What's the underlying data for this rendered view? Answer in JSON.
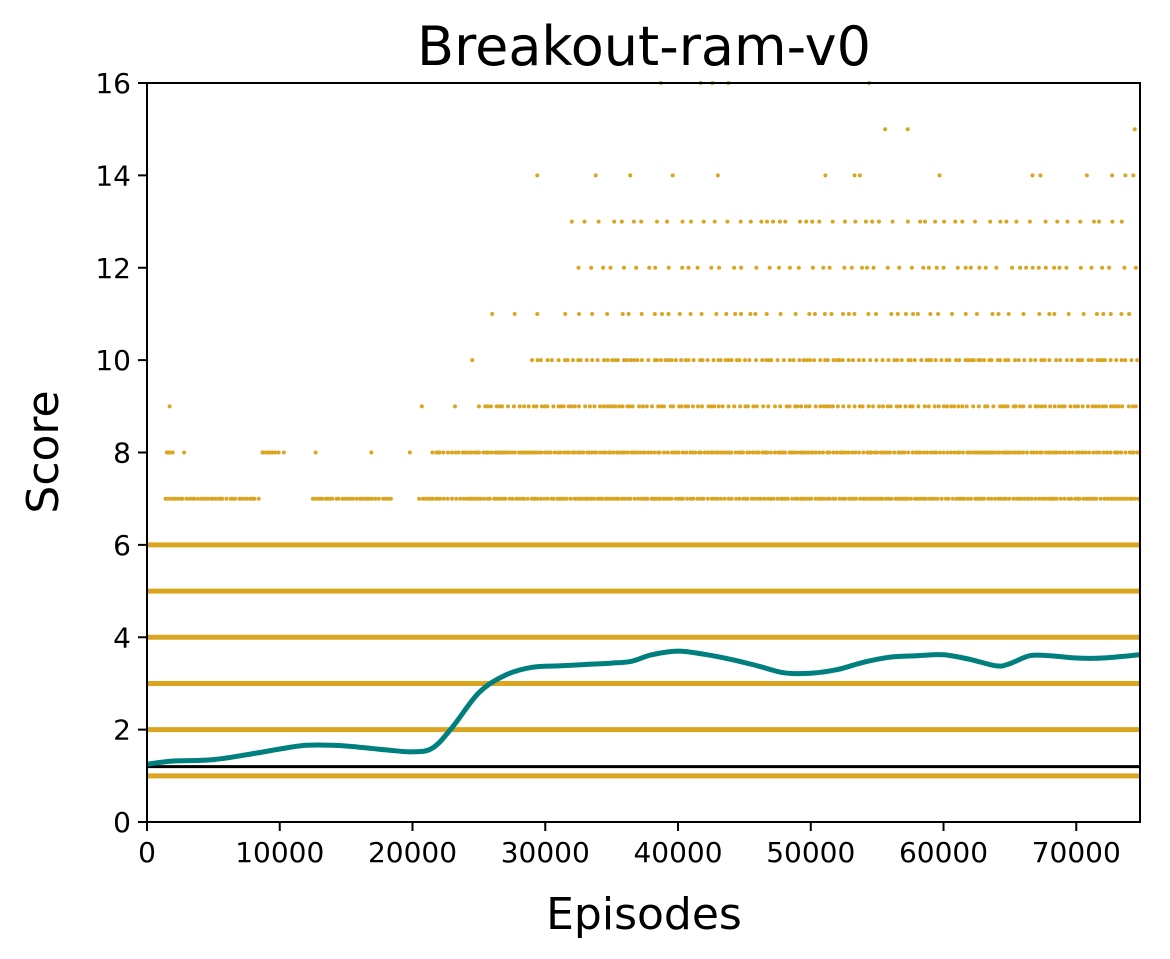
{
  "chart_data": {
    "type": "scatter",
    "title": "Breakout-ram-v0",
    "xlabel": "Episodes",
    "ylabel": "Score",
    "xlim": [
      0,
      74800
    ],
    "ylim": [
      0,
      16
    ],
    "xticks": [
      0,
      10000,
      20000,
      30000,
      40000,
      50000,
      60000,
      70000
    ],
    "yticks": [
      0,
      2,
      4,
      6,
      8,
      10,
      12,
      14,
      16
    ],
    "grid": false,
    "legend": "none",
    "colors": {
      "scatter": "#DAA520",
      "moving_average": "#007F7F",
      "baseline": "#000000"
    },
    "scatter_series": {
      "name": "",
      "description_rows": [
        {
          "score": 0,
          "ranges": [
            [
              0,
              74800
            ]
          ]
        },
        {
          "score": 1,
          "ranges": [
            [
              0,
              74800
            ]
          ]
        },
        {
          "score": 2,
          "ranges": [
            [
              0,
              74800
            ]
          ]
        },
        {
          "score": 3,
          "ranges": [
            [
              0,
              74800
            ]
          ]
        },
        {
          "score": 4,
          "ranges": [
            [
              0,
              74800
            ]
          ]
        },
        {
          "score": 5,
          "ranges": [
            [
              0,
              74800
            ]
          ]
        },
        {
          "score": 6,
          "ranges": [
            [
              0,
              74800
            ]
          ]
        },
        {
          "score": 7,
          "ranges": [
            [
              1400,
              8500
            ],
            [
              12500,
              18500
            ],
            [
              20500,
              74800
            ]
          ]
        },
        {
          "score": 8,
          "ranges": [
            [
              1500,
              2100
            ],
            [
              8700,
              10200
            ],
            [
              21500,
              74800
            ]
          ]
        },
        {
          "score": 9,
          "ranges": [
            [
              25000,
              74800
            ]
          ]
        },
        {
          "score": 10,
          "ranges": [
            [
              29000,
              74800
            ]
          ]
        },
        {
          "score": 11,
          "ranges": [
            [
              31500,
              74500
            ]
          ]
        },
        {
          "score": 12,
          "ranges": [
            [
              32500,
              74500
            ]
          ]
        },
        {
          "score": 13,
          "ranges": [
            [
              32000,
              74200
            ]
          ]
        }
      ],
      "isolated_points": [
        [
          1700,
          9
        ],
        [
          1500,
          8
        ],
        [
          2800,
          8
        ],
        [
          8700,
          8
        ],
        [
          10300,
          8
        ],
        [
          12700,
          8
        ],
        [
          16900,
          8
        ],
        [
          19800,
          8
        ],
        [
          20700,
          9
        ],
        [
          23200,
          9
        ],
        [
          24500,
          10
        ],
        [
          26000,
          11
        ],
        [
          27700,
          11
        ],
        [
          29400,
          11
        ],
        [
          29400,
          14
        ],
        [
          33800,
          14
        ],
        [
          36400,
          14
        ],
        [
          39600,
          14
        ],
        [
          43000,
          14
        ],
        [
          51100,
          14
        ],
        [
          53300,
          14
        ],
        [
          53700,
          14
        ],
        [
          59700,
          14
        ],
        [
          66700,
          14
        ],
        [
          67300,
          14
        ],
        [
          70800,
          14
        ],
        [
          72700,
          14
        ],
        [
          73700,
          14
        ],
        [
          74300,
          14
        ],
        [
          38700,
          16
        ],
        [
          41700,
          16
        ],
        [
          42600,
          16
        ],
        [
          43800,
          16
        ],
        [
          54400,
          16
        ],
        [
          55600,
          15
        ],
        [
          57300,
          15
        ],
        [
          74400,
          15
        ]
      ]
    },
    "moving_average": {
      "name": "",
      "x": [
        0,
        2000,
        5000,
        8000,
        10000,
        12000,
        14000,
        16000,
        18000,
        20000,
        21500,
        23000,
        25000,
        27000,
        29000,
        31000,
        33000,
        35000,
        36500,
        38000,
        40000,
        42000,
        44000,
        46000,
        48000,
        50000,
        52000,
        54000,
        56000,
        58000,
        60000,
        62000,
        64000,
        65000,
        66500,
        68000,
        70000,
        72000,
        74800
      ],
      "y": [
        1.25,
        1.32,
        1.35,
        1.48,
        1.58,
        1.66,
        1.66,
        1.62,
        1.56,
        1.52,
        1.6,
        2.05,
        2.8,
        3.18,
        3.35,
        3.38,
        3.41,
        3.44,
        3.48,
        3.62,
        3.7,
        3.63,
        3.52,
        3.38,
        3.23,
        3.22,
        3.3,
        3.46,
        3.57,
        3.6,
        3.62,
        3.52,
        3.38,
        3.43,
        3.6,
        3.6,
        3.55,
        3.55,
        3.62
      ]
    },
    "baseline": {
      "name": "",
      "y": 1.2
    }
  }
}
